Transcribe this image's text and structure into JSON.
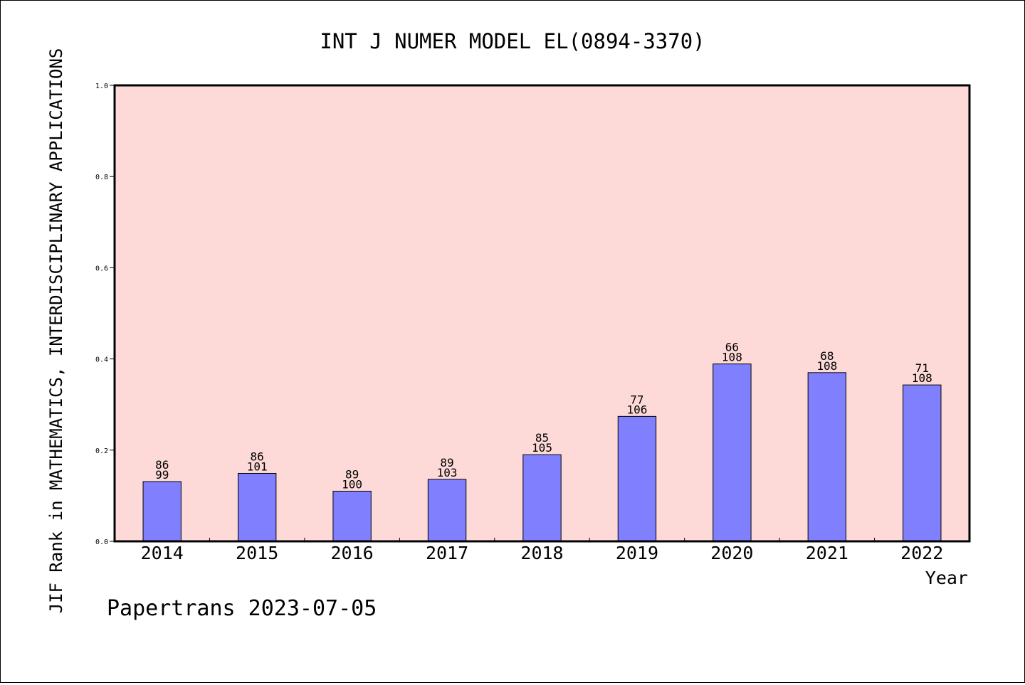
{
  "chart_data": {
    "type": "bar",
    "title": "INT J NUMER MODEL EL(0894-3370)",
    "xlabel": "Year",
    "ylabel": "JIF Rank in MATHEMATICS,  INTERDISCIPLINARY APPLICATIONS",
    "footer": "Papertrans 2023-07-05",
    "categories": [
      "2014",
      "2015",
      "2016",
      "2017",
      "2018",
      "2019",
      "2020",
      "2021",
      "2022"
    ],
    "values": [
      0.131,
      0.149,
      0.11,
      0.136,
      0.19,
      0.274,
      0.389,
      0.37,
      0.343
    ],
    "rank": [
      "86",
      "86",
      "89",
      "89",
      "85",
      "77",
      "66",
      "68",
      "71"
    ],
    "total": [
      "99",
      "101",
      "100",
      "103",
      "105",
      "106",
      "108",
      "108",
      "108"
    ],
    "ylim": [
      0,
      1.0
    ],
    "yticks": [
      "0.0",
      "0.2",
      "0.4",
      "0.6",
      "0.8",
      "1.0"
    ],
    "grid": false,
    "colors": {
      "plot_background": "#fddad7",
      "bar_fill": "#8080ff",
      "bar_stroke": "#000000"
    }
  }
}
